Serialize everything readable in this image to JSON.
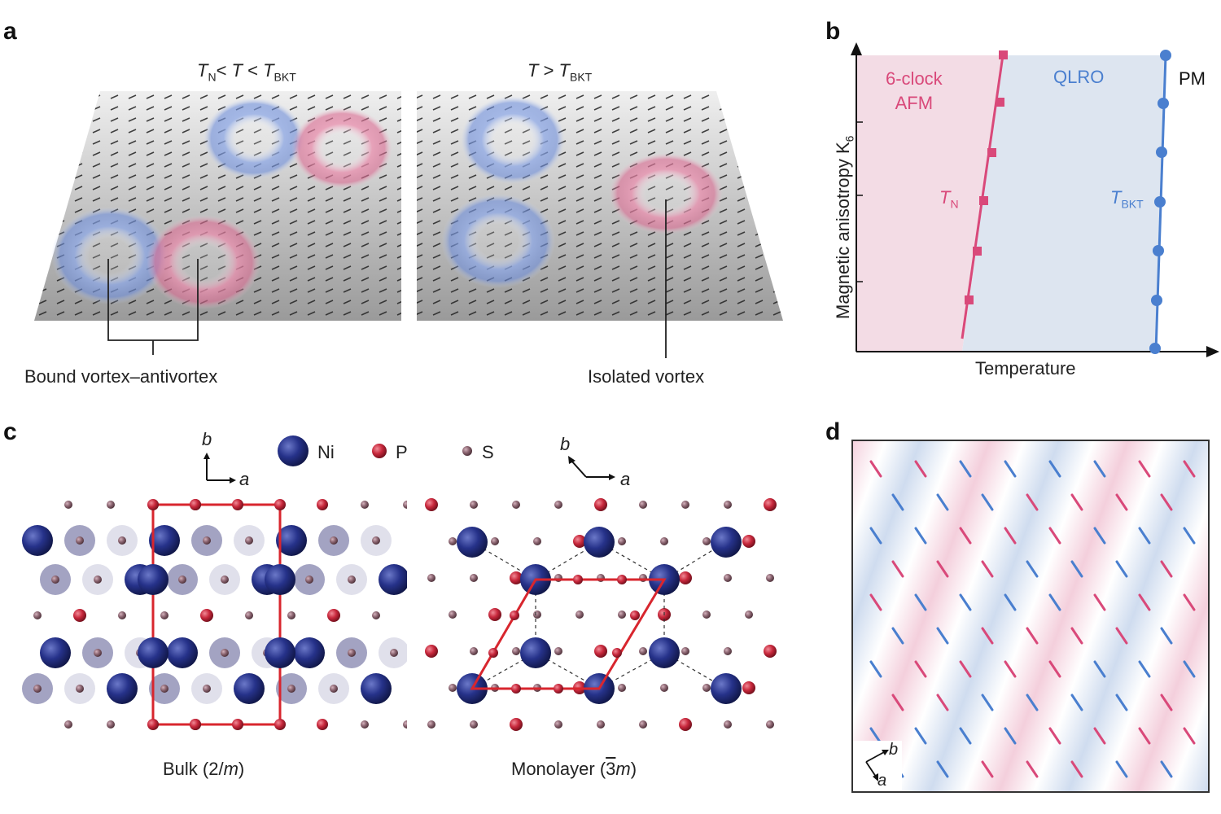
{
  "panels": {
    "a": {
      "letter": "a",
      "left_title": {
        "t1": "T",
        "t1sub": "N",
        "mid": "< ",
        "t2": "T",
        "mid2": " < ",
        "t3": "T",
        "t3sub": "BKT"
      },
      "right_title": {
        "t1": "T",
        "mid": " > ",
        "t2": "T",
        "t2sub": "BKT"
      },
      "bound_label": "Bound vortex–antivortex",
      "isolated_label": "Isolated vortex"
    },
    "b": {
      "letter": "b",
      "ylabel": "Magnetic anisotropy K",
      "ylabel_sub": "6",
      "xlabel": "Temperature",
      "region_afm": [
        "6-clock",
        "AFM"
      ],
      "region_qlro": "QLRO",
      "region_pm": "PM",
      "tn_label": "T",
      "tn_sub": "N",
      "tbkt_label": "T",
      "tbkt_sub": "BKT"
    },
    "c": {
      "letter": "c",
      "legend": {
        "ni": "Ni",
        "p": "P",
        "s": "S"
      },
      "axis_a": "a",
      "axis_b": "b",
      "bulk_label": "Bulk (2/m)",
      "bulk_text": {
        "pre": "Bulk (2/",
        "m": "m",
        "post": ")"
      },
      "mono_text": {
        "pre": "Monolayer (",
        "bar3": "3",
        "m": "m",
        "post": ")"
      }
    },
    "d": {
      "letter": "d",
      "axis_a": "a",
      "axis_b": "b"
    }
  },
  "colors": {
    "pink": "#d9497a",
    "blue": "#4a7fcf",
    "ni": "#1e2a7a",
    "p": "#c8283c",
    "s": "#8a6470",
    "unitcell": "#d8262e"
  }
}
